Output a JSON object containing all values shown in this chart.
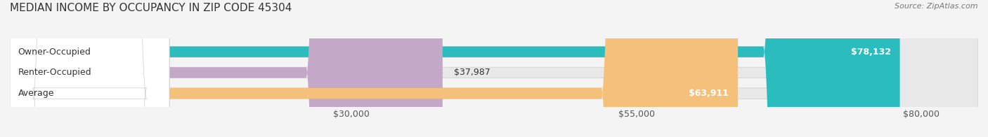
{
  "title": "MEDIAN INCOME BY OCCUPANCY IN ZIP CODE 45304",
  "source": "Source: ZipAtlas.com",
  "categories": [
    "Owner-Occupied",
    "Renter-Occupied",
    "Average"
  ],
  "values": [
    78132,
    37987,
    63911
  ],
  "bar_colors": [
    "#2bbcbe",
    "#c4a8c8",
    "#f5c07a"
  ],
  "label_inside": [
    "$78,132",
    "$37,987",
    "$63,911"
  ],
  "value_label_positions": [
    "inside_right",
    "outside_right",
    "inside_right"
  ],
  "xlim": [
    0,
    85000
  ],
  "xticks": [
    30000,
    55000,
    80000
  ],
  "xticklabels": [
    "$30,000",
    "$55,000",
    "$80,000"
  ],
  "background_color": "#f4f4f4",
  "bar_bg_color": "#e0e0e0",
  "title_fontsize": 11,
  "source_fontsize": 8,
  "label_fontsize": 9,
  "xtick_fontsize": 9,
  "rounding_size": 12000
}
